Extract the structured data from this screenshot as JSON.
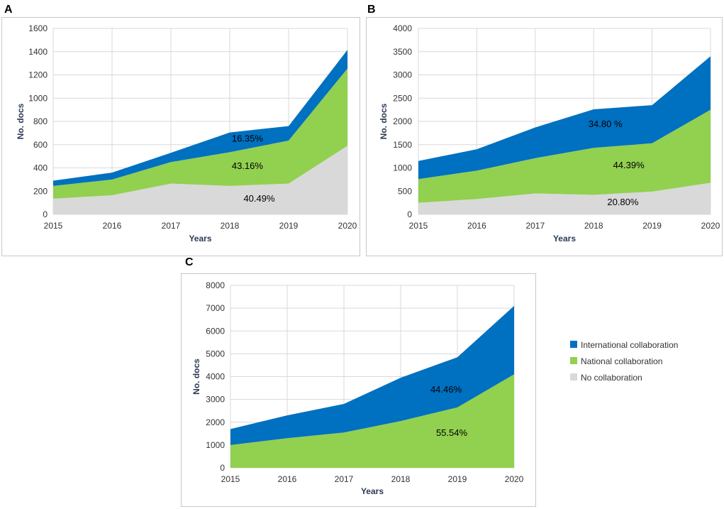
{
  "colors": {
    "international": "#0070c0",
    "national": "#92d050",
    "none": "#d9d9d9",
    "grid": "#d9d9d9",
    "frame": "#c8c8c8"
  },
  "legend": [
    {
      "key": "international",
      "label": "International collaboration"
    },
    {
      "key": "national",
      "label": "National collaboration"
    },
    {
      "key": "none",
      "label": "No collaboration"
    }
  ],
  "chart_data": [
    {
      "panel": "A",
      "type": "area",
      "stacked": true,
      "x": [
        2015,
        2016,
        2017,
        2018,
        2019,
        2020
      ],
      "xticks": [
        "2015",
        "2016",
        "2017",
        "2018",
        "2019",
        "2020"
      ],
      "xlabel": "Years",
      "ylabel": "No. docs",
      "ylim": [
        0,
        1600
      ],
      "yticks": [
        "0",
        "200",
        "400",
        "600",
        "800",
        "1000",
        "1200",
        "1400",
        "1600"
      ],
      "series": [
        {
          "key": "none",
          "name": "No collaboration",
          "values": [
            135,
            165,
            265,
            245,
            265,
            590
          ]
        },
        {
          "key": "national",
          "name": "National collaboration",
          "values": [
            110,
            135,
            185,
            290,
            370,
            665
          ]
        },
        {
          "key": "international",
          "name": "International collaboration",
          "values": [
            45,
            60,
            80,
            170,
            125,
            160
          ]
        }
      ],
      "annotations": [
        {
          "text": "16.35%",
          "x": 2018.3,
          "y": 625
        },
        {
          "text": "43.16%",
          "x": 2018.3,
          "y": 390
        },
        {
          "text": "40.49%",
          "x": 2018.5,
          "y": 110
        }
      ]
    },
    {
      "panel": "B",
      "type": "area",
      "stacked": true,
      "x": [
        2015,
        2016,
        2017,
        2018,
        2019,
        2020
      ],
      "xticks": [
        "2015",
        "2016",
        "2017",
        "2018",
        "2019",
        "2020"
      ],
      "xlabel": "Years",
      "ylabel": "No. docs",
      "ylim": [
        0,
        4000
      ],
      "yticks": [
        "0",
        "500",
        "1000",
        "1500",
        "2000",
        "2500",
        "3000",
        "3500",
        "4000"
      ],
      "series": [
        {
          "key": "none",
          "name": "No collaboration",
          "values": [
            250,
            330,
            450,
            420,
            490,
            680
          ]
        },
        {
          "key": "national",
          "name": "National collaboration",
          "values": [
            510,
            610,
            760,
            1010,
            1040,
            1570
          ]
        },
        {
          "key": "international",
          "name": "International collaboration",
          "values": [
            390,
            460,
            660,
            830,
            820,
            1150
          ]
        }
      ],
      "annotations": [
        {
          "text": "34.80 %",
          "x": 2018.2,
          "y": 1880
        },
        {
          "text": "44.39%",
          "x": 2018.6,
          "y": 990
        },
        {
          "text": "20.80%",
          "x": 2018.5,
          "y": 200
        }
      ]
    },
    {
      "panel": "C",
      "type": "area",
      "stacked": true,
      "x": [
        2015,
        2016,
        2017,
        2018,
        2019,
        2020
      ],
      "xticks": [
        "2015",
        "2016",
        "2017",
        "2018",
        "2019",
        "2020"
      ],
      "xlabel": "Years",
      "ylabel": "No. docs",
      "ylim": [
        0,
        8000
      ],
      "yticks": [
        "0",
        "1000",
        "2000",
        "3000",
        "4000",
        "5000",
        "6000",
        "7000",
        "8000"
      ],
      "series": [
        {
          "key": "national",
          "name": "National collaboration",
          "values": [
            1000,
            1300,
            1550,
            2050,
            2650,
            4100
          ]
        },
        {
          "key": "international",
          "name": "International collaboration",
          "values": [
            700,
            1000,
            1250,
            1900,
            2200,
            3000
          ]
        }
      ],
      "annotations": [
        {
          "text": "44.46%",
          "x": 2018.8,
          "y": 3300
        },
        {
          "text": "55.54%",
          "x": 2018.9,
          "y": 1400
        }
      ]
    }
  ]
}
